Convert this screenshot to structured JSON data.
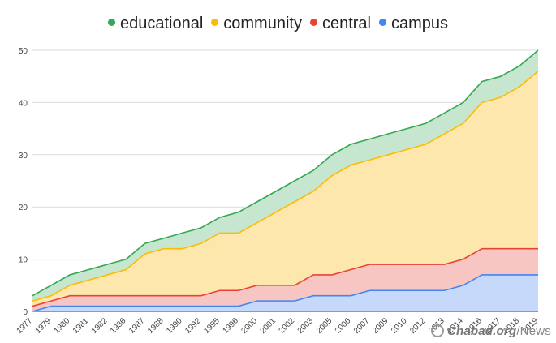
{
  "chart_data": {
    "type": "area",
    "stacked": true,
    "x": [
      "1977",
      "1979",
      "1980",
      "1981",
      "1982",
      "1986",
      "1987",
      "1988",
      "1990",
      "1992",
      "1995",
      "1996",
      "2000",
      "2001",
      "2002",
      "2003",
      "2005",
      "2006",
      "2007",
      "2009",
      "2010",
      "2012",
      "2013",
      "2014",
      "2016",
      "2017",
      "2018",
      "2019"
    ],
    "series": [
      {
        "name": "campus",
        "color": "#4285f4",
        "fill": "#c6d9fb",
        "values": [
          0,
          1,
          1,
          1,
          1,
          1,
          1,
          1,
          1,
          1,
          1,
          1,
          2,
          2,
          2,
          3,
          3,
          3,
          4,
          4,
          4,
          4,
          4,
          5,
          7,
          7,
          7,
          7
        ]
      },
      {
        "name": "central",
        "color": "#ea4335",
        "fill": "#f8c6c2",
        "values": [
          1,
          1,
          2,
          2,
          2,
          2,
          2,
          2,
          2,
          2,
          3,
          3,
          3,
          3,
          3,
          4,
          4,
          5,
          5,
          5,
          5,
          5,
          5,
          5,
          5,
          5,
          5,
          5
        ]
      },
      {
        "name": "community",
        "color": "#fbbc04",
        "fill": "#fde7ad",
        "values": [
          1,
          1,
          2,
          3,
          4,
          5,
          8,
          9,
          9,
          10,
          11,
          11,
          12,
          14,
          16,
          16,
          19,
          20,
          20,
          21,
          22,
          23,
          25,
          26,
          28,
          29,
          31,
          34
        ]
      },
      {
        "name": "educational",
        "color": "#34a853",
        "fill": "#c7e6cf",
        "values": [
          1,
          2,
          2,
          2,
          2,
          2,
          2,
          2,
          3,
          3,
          3,
          4,
          4,
          4,
          4,
          4,
          4,
          4,
          4,
          4,
          4,
          4,
          4,
          4,
          4,
          4,
          4,
          4
        ]
      }
    ],
    "legend_order": [
      "educational",
      "community",
      "central",
      "campus"
    ],
    "legend_position": "top",
    "ylim": [
      0,
      50
    ],
    "yticks": [
      0,
      10,
      20,
      30,
      40,
      50
    ],
    "grid": true,
    "title": "",
    "xlabel": "",
    "ylabel": ""
  },
  "watermark": {
    "brand": "Chabad.org",
    "suffix": "/News",
    "text": "Chabad.org/News"
  }
}
